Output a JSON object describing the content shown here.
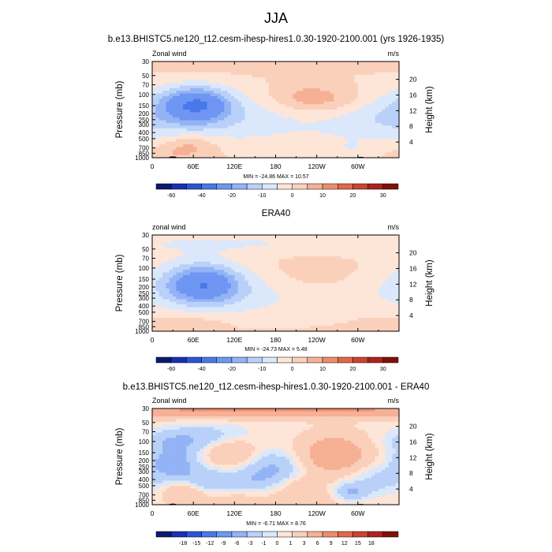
{
  "figure": {
    "title": "JJA"
  },
  "colors": {
    "cmap_a": [
      "#0a1a6e",
      "#1630b4",
      "#2a55d8",
      "#4a78ea",
      "#6e96f2",
      "#93b3f6",
      "#b9d0f8",
      "#dbe8fb",
      "#fde5d8",
      "#fbd0bb",
      "#f6b095",
      "#ef8c6e",
      "#e2664a",
      "#cc4230",
      "#ad2219",
      "#801009"
    ],
    "cmap_b": [
      "#0a1a6e",
      "#1630b4",
      "#2a55d8",
      "#4a78ea",
      "#6e96f2",
      "#93b3f6",
      "#b9d0f8",
      "#dbe8fb",
      "#fde5d8",
      "#fbd0bb",
      "#f6b095",
      "#ef8c6e",
      "#e2664a",
      "#cc4230",
      "#ad2219",
      "#801009"
    ]
  },
  "chart_data": [
    {
      "type": "heatmap",
      "title": "b.e13.BHISTC5.ne120_t12.cesm-ihesp-hires1.0.30-1920-2100.001 (yrs 1926-1935)",
      "left_label": "Zonal wind",
      "right_label": "m/s",
      "ylabel": "Pressure (mb)",
      "ylabel_right": "Height (km)",
      "x_ticks": [
        {
          "lon": 0,
          "label": "0"
        },
        {
          "lon": 60,
          "label": "60E"
        },
        {
          "lon": 120,
          "label": "120E"
        },
        {
          "lon": 180,
          "label": "180"
        },
        {
          "lon": 240,
          "label": "120W"
        },
        {
          "lon": 300,
          "label": "60W"
        }
      ],
      "xlim": [
        0,
        360
      ],
      "y_ticks": [
        {
          "p": 30,
          "label": "30"
        },
        {
          "p": 50,
          "label": "50"
        },
        {
          "p": 70,
          "label": "70"
        },
        {
          "p": 100,
          "label": "100"
        },
        {
          "p": 150,
          "label": "150"
        },
        {
          "p": 200,
          "label": "200"
        },
        {
          "p": 250,
          "label": "250"
        },
        {
          "p": 300,
          "label": "300"
        },
        {
          "p": 400,
          "label": "400"
        },
        {
          "p": 500,
          "label": "500"
        },
        {
          "p": 700,
          "label": "700"
        },
        {
          "p": 850,
          "label": "850"
        },
        {
          "p": 1000,
          "label": "1000"
        }
      ],
      "ylim": [
        30,
        1000
      ],
      "height_ticks": [
        {
          "km": 4,
          "label": "4"
        },
        {
          "km": 8,
          "label": "8"
        },
        {
          "km": 12,
          "label": "12"
        },
        {
          "km": 16,
          "label": "16"
        },
        {
          "km": 20,
          "label": "20"
        }
      ],
      "stats": "MIN = -24.86  MAX = 10.57",
      "levels": [
        -60,
        -50,
        -40,
        -30,
        -20,
        -15,
        -10,
        -5,
        0,
        5,
        10,
        15,
        20,
        25,
        30
      ],
      "level_labels": [
        "-60",
        "-40",
        "-20",
        "-10",
        "0",
        "10",
        "20",
        "30"
      ],
      "level_label_values": [
        -60,
        -40,
        -20,
        -10,
        0,
        10,
        20,
        30
      ],
      "cmap": "cmap_a",
      "features": [
        {
          "lon": 65,
          "p": 140,
          "wlon": 35,
          "wlnp": 0.45,
          "amp": -25
        },
        {
          "lon": 40,
          "p": 220,
          "wlon": 60,
          "wlnp": 0.7,
          "amp": -8
        },
        {
          "lon": 140,
          "p": 250,
          "wlon": 60,
          "wlnp": 0.55,
          "amp": -5
        },
        {
          "lon": 230,
          "p": 160,
          "wlon": 90,
          "wlnp": 0.9,
          "amp": -4
        },
        {
          "lon": 320,
          "p": 230,
          "wlon": 60,
          "wlnp": 0.7,
          "amp": -6
        },
        {
          "lon": 255,
          "p": 120,
          "wlon": 45,
          "wlnp": 0.4,
          "amp": 9
        },
        {
          "lon": 215,
          "p": 110,
          "wlon": 35,
          "wlnp": 0.35,
          "amp": 4
        },
        {
          "lon": 55,
          "p": 650,
          "wlon": 28,
          "wlnp": 0.3,
          "amp": 8
        },
        {
          "lon": 20,
          "p": 850,
          "wlon": 25,
          "wlnp": 0.2,
          "amp": 3
        },
        {
          "lon": 290,
          "p": 700,
          "wlon": 8,
          "wlnp": 0.15,
          "amp": -4
        },
        {
          "lon": 180,
          "p": 600,
          "wlon": 120,
          "wlnp": 0.5,
          "amp": -2
        }
      ],
      "base": 1.5,
      "topo": [
        {
          "lon0": 10,
          "lon1": 25,
          "p": 985
        },
        {
          "lon0": 25,
          "lon1": 35,
          "p": 960
        },
        {
          "lon0": 282,
          "lon1": 300,
          "p": 985
        },
        {
          "lon0": 300,
          "lon1": 308,
          "p": 970
        }
      ]
    },
    {
      "type": "heatmap",
      "title": "ERA40",
      "left_label": "zonal wind",
      "right_label": "m/s",
      "ylabel": "Pressure (mb)",
      "ylabel_right": "Height (km)",
      "x_ticks": [
        {
          "lon": 0,
          "label": "0"
        },
        {
          "lon": 60,
          "label": "60E"
        },
        {
          "lon": 120,
          "label": "120E"
        },
        {
          "lon": 180,
          "label": "180"
        },
        {
          "lon": 240,
          "label": "120W"
        },
        {
          "lon": 300,
          "label": "60W"
        }
      ],
      "xlim": [
        0,
        360
      ],
      "y_ticks": [
        {
          "p": 30,
          "label": "30"
        },
        {
          "p": 50,
          "label": "50"
        },
        {
          "p": 70,
          "label": "70"
        },
        {
          "p": 100,
          "label": "100"
        },
        {
          "p": 150,
          "label": "150"
        },
        {
          "p": 200,
          "label": "200"
        },
        {
          "p": 250,
          "label": "250"
        },
        {
          "p": 300,
          "label": "300"
        },
        {
          "p": 400,
          "label": "400"
        },
        {
          "p": 500,
          "label": "500"
        },
        {
          "p": 700,
          "label": "700"
        },
        {
          "p": 850,
          "label": "850"
        },
        {
          "p": 1000,
          "label": "1000"
        }
      ],
      "ylim": [
        30,
        1000
      ],
      "height_ticks": [
        {
          "km": 4,
          "label": "4"
        },
        {
          "km": 8,
          "label": "8"
        },
        {
          "km": 12,
          "label": "12"
        },
        {
          "km": 16,
          "label": "16"
        },
        {
          "km": 20,
          "label": "20"
        }
      ],
      "stats": "MIN = -24.73  MAX =  5.48",
      "levels": [
        -60,
        -50,
        -40,
        -30,
        -20,
        -15,
        -10,
        -5,
        0,
        5,
        10,
        15,
        20,
        25,
        30
      ],
      "level_labels": [
        "-60",
        "-40",
        "-20",
        "-10",
        "0",
        "10",
        "20",
        "30"
      ],
      "level_label_values": [
        -60,
        -40,
        -20,
        -10,
        0,
        10,
        20,
        30
      ],
      "cmap": "cmap_a",
      "features": [
        {
          "lon": 75,
          "p": 180,
          "wlon": 38,
          "wlnp": 0.5,
          "amp": -24
        },
        {
          "lon": 60,
          "p": 200,
          "wlon": 80,
          "wlnp": 0.9,
          "amp": -6
        },
        {
          "lon": 160,
          "p": 300,
          "wlon": 70,
          "wlnp": 0.6,
          "amp": -4
        },
        {
          "lon": 290,
          "p": 250,
          "wlon": 80,
          "wlnp": 0.8,
          "amp": -4
        },
        {
          "lon": 180,
          "p": 40,
          "wlon": 300,
          "wlnp": 0.3,
          "amp": -6
        },
        {
          "lon": 250,
          "p": 140,
          "wlon": 55,
          "wlnp": 0.5,
          "amp": 4
        },
        {
          "lon": 60,
          "p": 750,
          "wlon": 35,
          "wlnp": 0.3,
          "amp": 4
        },
        {
          "lon": 330,
          "p": 650,
          "wlon": 40,
          "wlnp": 0.4,
          "amp": 2
        }
      ],
      "base": 1.5,
      "topo": []
    },
    {
      "type": "heatmap",
      "title": "b.e13.BHISTC5.ne120_t12.cesm-ihesp-hires1.0.30-1920-2100.001 - ERA40",
      "left_label": "Zonal wind",
      "right_label": "m/s",
      "ylabel": "Pressure (mb)",
      "ylabel_right": "Height (km)",
      "x_ticks": [
        {
          "lon": 0,
          "label": "0"
        },
        {
          "lon": 60,
          "label": "60E"
        },
        {
          "lon": 120,
          "label": "120E"
        },
        {
          "lon": 180,
          "label": "180"
        },
        {
          "lon": 240,
          "label": "120W"
        },
        {
          "lon": 300,
          "label": "60W"
        }
      ],
      "xlim": [
        0,
        360
      ],
      "y_ticks": [
        {
          "p": 30,
          "label": "30"
        },
        {
          "p": 50,
          "label": "50"
        },
        {
          "p": 70,
          "label": "70"
        },
        {
          "p": 100,
          "label": "100"
        },
        {
          "p": 150,
          "label": "150"
        },
        {
          "p": 200,
          "label": "200"
        },
        {
          "p": 250,
          "label": "250"
        },
        {
          "p": 300,
          "label": "300"
        },
        {
          "p": 400,
          "label": "400"
        },
        {
          "p": 500,
          "label": "500"
        },
        {
          "p": 700,
          "label": "700"
        },
        {
          "p": 850,
          "label": "850"
        },
        {
          "p": 1000,
          "label": "1000"
        }
      ],
      "ylim": [
        30,
        1000
      ],
      "height_ticks": [
        {
          "km": 4,
          "label": "4"
        },
        {
          "km": 8,
          "label": "8"
        },
        {
          "km": 12,
          "label": "12"
        },
        {
          "km": 16,
          "label": "16"
        },
        {
          "km": 20,
          "label": "20"
        }
      ],
      "stats": "MIN = -6.71  MAX =  8.76",
      "levels": [
        -21,
        -18,
        -15,
        -12,
        -9,
        -6,
        -3,
        -1,
        0,
        1,
        3,
        6,
        9,
        12,
        15,
        18,
        21
      ],
      "level_labels": [
        "-18",
        "-15",
        "-12",
        "-9",
        "-6",
        "-3",
        "-1",
        "0",
        "1",
        "3",
        "6",
        "9",
        "12",
        "15",
        "18"
      ],
      "level_label_values": [
        -18,
        -15,
        -12,
        -9,
        -6,
        -3,
        -1,
        0,
        1,
        3,
        6,
        9,
        12,
        15,
        18
      ],
      "cmap": "cmap_b",
      "features": [
        {
          "lon": 180,
          "p": 30,
          "wlon": 400,
          "wlnp": 0.22,
          "amp": 6
        },
        {
          "lon": 35,
          "p": 100,
          "wlon": 35,
          "wlnp": 0.3,
          "amp": -3
        },
        {
          "lon": 90,
          "p": 80,
          "wlon": 40,
          "wlnp": 0.3,
          "amp": -2
        },
        {
          "lon": 30,
          "p": 220,
          "wlon": 25,
          "wlnp": 0.4,
          "amp": -5
        },
        {
          "lon": 115,
          "p": 150,
          "wlon": 28,
          "wlnp": 0.4,
          "amp": 3
        },
        {
          "lon": 175,
          "p": 280,
          "wlon": 30,
          "wlnp": 0.45,
          "amp": -4
        },
        {
          "lon": 265,
          "p": 160,
          "wlon": 35,
          "wlnp": 0.5,
          "amp": 5
        },
        {
          "lon": 75,
          "p": 450,
          "wlon": 30,
          "wlnp": 0.35,
          "amp": -4
        },
        {
          "lon": 50,
          "p": 600,
          "wlon": 22,
          "wlnp": 0.3,
          "amp": 4
        },
        {
          "lon": 140,
          "p": 450,
          "wlon": 28,
          "wlnp": 0.3,
          "amp": -2
        },
        {
          "lon": 210,
          "p": 500,
          "wlon": 30,
          "wlnp": 0.3,
          "amp": 2
        },
        {
          "lon": 290,
          "p": 650,
          "wlon": 18,
          "wlnp": 0.25,
          "amp": -4
        },
        {
          "lon": 330,
          "p": 400,
          "wlon": 30,
          "wlnp": 0.4,
          "amp": -2
        },
        {
          "lon": 115,
          "p": 700,
          "wlon": 35,
          "wlnp": 0.3,
          "amp": 1.5
        },
        {
          "lon": 240,
          "p": 850,
          "wlon": 60,
          "wlnp": 0.2,
          "amp": 1.5
        }
      ],
      "base": 0.5,
      "topo": [
        {
          "lon0": 10,
          "lon1": 25,
          "p": 985
        },
        {
          "lon0": 25,
          "lon1": 35,
          "p": 970
        },
        {
          "lon0": 282,
          "lon1": 300,
          "p": 985
        },
        {
          "lon0": 300,
          "lon1": 308,
          "p": 975
        }
      ]
    }
  ]
}
